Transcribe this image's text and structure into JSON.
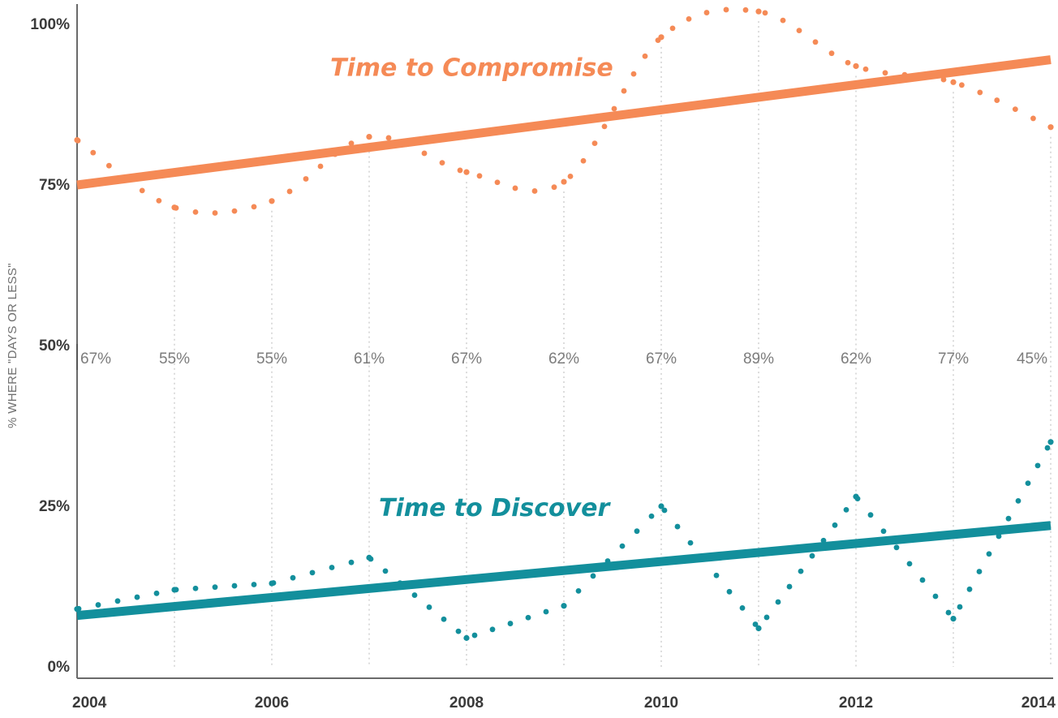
{
  "chart_data": {
    "type": "line",
    "xlabel": "",
    "ylabel": "% WHERE \"DAYS OR LESS\"",
    "x_ticks": [
      "2004",
      "2006",
      "2008",
      "2010",
      "2012",
      "2014"
    ],
    "y_ticks": [
      "0%",
      "25%",
      "50%",
      "75%",
      "100%"
    ],
    "xlim": [
      2004,
      2014
    ],
    "ylim": [
      0,
      100
    ],
    "grid": "vertical dotted lines at each year",
    "x": [
      2004,
      2005,
      2006,
      2007,
      2008,
      2009,
      2010,
      2011,
      2012,
      2013,
      2014
    ],
    "gap_labels": [
      "67%",
      "55%",
      "55%",
      "61%",
      "67%",
      "62%",
      "67%",
      "89%",
      "62%",
      "77%",
      "45%"
    ],
    "series": [
      {
        "name": "Time to Compromise",
        "color": "#f58a56",
        "style": "dotted",
        "values": [
          82,
          71.5,
          72.5,
          82.5,
          77,
          75.5,
          98,
          102,
          93.5,
          91,
          84
        ]
      },
      {
        "name": "Time to Discover",
        "color": "#138f9c",
        "style": "dotted",
        "values": [
          9,
          12,
          13,
          17,
          4.5,
          9.5,
          25,
          6,
          26.5,
          7.5,
          35
        ]
      }
    ],
    "trendlines": [
      {
        "series": "Time to Compromise",
        "color": "#f58a56",
        "start": [
          2004,
          75
        ],
        "end": [
          2014,
          94.5
        ]
      },
      {
        "series": "Time to Discover",
        "color": "#138f9c",
        "start": [
          2004,
          8
        ],
        "end": [
          2014,
          22
        ]
      }
    ],
    "annotations": [
      {
        "text": "Time to Compromise",
        "color": "#f58a56",
        "at": [
          2006.6,
          92
        ]
      },
      {
        "text": "Time to Discover",
        "color": "#138f9c",
        "at": [
          2007.1,
          23.5
        ]
      }
    ]
  }
}
